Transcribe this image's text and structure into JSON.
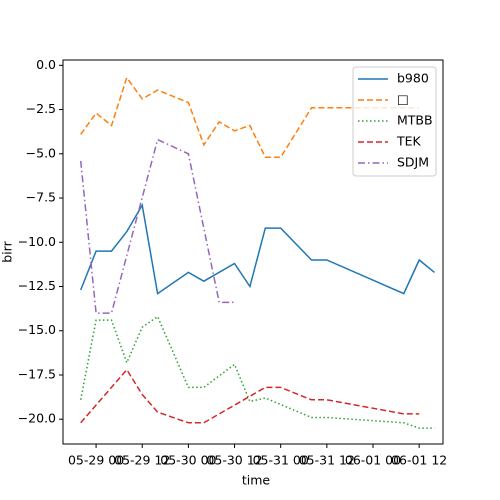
{
  "chart_data": {
    "type": "line",
    "x_label": "time",
    "y_label": "birr",
    "xlim": [
      -8.6,
      90.2
    ],
    "ylim": [
      -21.4,
      0.3
    ],
    "xticks": [
      {
        "value": 0,
        "label": "05-29 00"
      },
      {
        "value": 12,
        "label": "05-29 12"
      },
      {
        "value": 24,
        "label": "05-30 00"
      },
      {
        "value": 36,
        "label": "05-30 12"
      },
      {
        "value": 48,
        "label": "05-31 00"
      },
      {
        "value": 60,
        "label": "05-31 12"
      },
      {
        "value": 72,
        "label": "06-01 00"
      },
      {
        "value": 84,
        "label": "06-01 12"
      }
    ],
    "yticks": [
      {
        "value": 0,
        "label": "0.0"
      },
      {
        "value": -2.5,
        "label": "−2.5"
      },
      {
        "value": -5,
        "label": "−5.0"
      },
      {
        "value": -7.5,
        "label": "−7.5"
      },
      {
        "value": -10,
        "label": "−10.0"
      },
      {
        "value": -12.5,
        "label": "−12.5"
      },
      {
        "value": -15,
        "label": "−15.0"
      },
      {
        "value": -17.5,
        "label": "−17.5"
      },
      {
        "value": -20,
        "label": "−20.0"
      }
    ],
    "legend": "upper right",
    "series": [
      {
        "name": "b980",
        "color": "#1f77b4",
        "linestyle": "solid",
        "x": [
          -4,
          0,
          4,
          8,
          12,
          16,
          24,
          28,
          36,
          40,
          44,
          48,
          56,
          60,
          80,
          84,
          88
        ],
        "values": [
          -12.7,
          -10.5,
          -10.5,
          -9.4,
          -7.9,
          -12.9,
          -11.7,
          -12.2,
          -11.2,
          -12.5,
          -9.2,
          -9.2,
          -11.0,
          -11.0,
          -12.9,
          -11.0,
          -11.7
        ]
      },
      {
        "name": "□",
        "color": "#ff7f0e",
        "linestyle": "dashed",
        "x": [
          -4,
          0,
          4,
          8,
          12,
          16,
          24,
          28,
          32,
          36,
          40,
          44,
          48,
          56,
          60,
          80,
          84
        ],
        "values": [
          -3.9,
          -2.7,
          -3.4,
          -0.7,
          -1.9,
          -1.4,
          -2.1,
          -4.5,
          -3.2,
          -3.7,
          -3.4,
          -5.2,
          -5.2,
          -2.4,
          -2.4,
          -2.4,
          -2.4
        ]
      },
      {
        "name": "MTBB",
        "color": "#2ca02c",
        "linestyle": "dotted",
        "x": [
          -4,
          0,
          4,
          8,
          12,
          16,
          24,
          28,
          36,
          40,
          44,
          56,
          60,
          80,
          84,
          88
        ],
        "values": [
          -18.9,
          -14.4,
          -14.4,
          -16.8,
          -14.8,
          -14.2,
          -18.2,
          -18.2,
          -16.9,
          -19.0,
          -18.8,
          -19.9,
          -19.9,
          -20.2,
          -20.5,
          -20.5
        ]
      },
      {
        "name": "TEK",
        "color": "#d62728",
        "linestyle": "dashed",
        "x": [
          -4,
          8,
          12,
          16,
          24,
          28,
          44,
          48,
          56,
          60,
          80,
          84
        ],
        "values": [
          -20.2,
          -17.2,
          -18.6,
          -19.6,
          -20.2,
          -20.2,
          -18.2,
          -18.2,
          -18.9,
          -18.9,
          -19.7,
          -19.7
        ]
      },
      {
        "name": "SDJM",
        "color": "#9467bd",
        "linestyle": "dashdot",
        "x": [
          -4,
          0,
          4,
          16,
          24,
          32,
          36
        ],
        "values": [
          -5.4,
          -14.0,
          -14.0,
          -4.2,
          -5.0,
          -13.4,
          -13.4
        ]
      }
    ]
  }
}
